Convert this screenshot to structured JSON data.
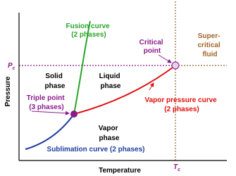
{
  "fusion_curve": [
    "Fusion curve",
    "(2 phases)"
  ],
  "critical_point": [
    "Critical",
    "point"
  ],
  "supercritical_fluid": [
    "Super-",
    "critical",
    "fluid"
  ],
  "pc": {
    "main": "P",
    "sub": "c"
  },
  "tc": {
    "main": "T",
    "sub": "c"
  },
  "solid_phase": [
    "Solid",
    "phase"
  ],
  "liquid_phase": [
    "Liquid",
    "phase"
  ],
  "triple_point": [
    "Triple point",
    "(3 phases)"
  ],
  "vapor_pressure_curve": [
    "Vapor pressure curve",
    "(2 phases)"
  ],
  "vapor_phase": [
    "Vapor",
    "phase"
  ],
  "sublimation_curve": "Sublimation curve (2 phases)",
  "y_axis_label": "Pressure",
  "x_axis_label": "Temperature"
}
